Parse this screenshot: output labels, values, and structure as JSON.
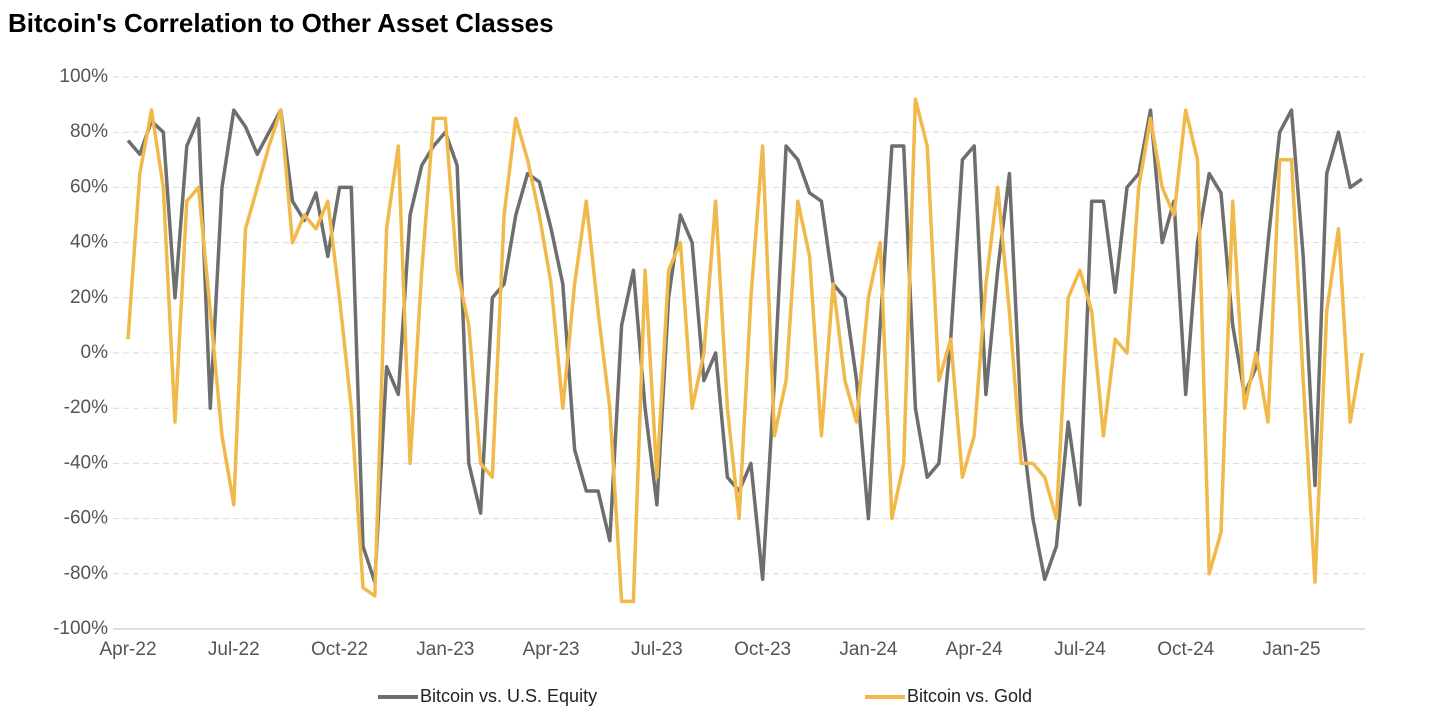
{
  "chart_data": {
    "type": "line",
    "title": "Bitcoin's Correlation to Other Asset Classes",
    "categories": [
      "Apr-22",
      null,
      null,
      null,
      null,
      null,
      null,
      null,
      null,
      "Jul-22",
      null,
      null,
      null,
      null,
      null,
      null,
      null,
      null,
      "Oct-22",
      null,
      null,
      null,
      null,
      null,
      null,
      null,
      null,
      "Jan-23",
      null,
      null,
      null,
      null,
      null,
      null,
      null,
      null,
      "Apr-23",
      null,
      null,
      null,
      null,
      null,
      null,
      null,
      null,
      "Jul-23",
      null,
      null,
      null,
      null,
      null,
      null,
      null,
      null,
      "Oct-23",
      null,
      null,
      null,
      null,
      null,
      null,
      null,
      null,
      "Jan-24",
      null,
      null,
      null,
      null,
      null,
      null,
      null,
      null,
      "Apr-24",
      null,
      null,
      null,
      null,
      null,
      null,
      null,
      null,
      "Jul-24",
      null,
      null,
      null,
      null,
      null,
      null,
      null,
      null,
      "Oct-24",
      null,
      null,
      null,
      null,
      null,
      null,
      null,
      null,
      "Jan-25",
      null,
      null,
      null,
      null,
      null,
      null
    ],
    "series": [
      {
        "name": "Bitcoin vs. U.S. Equity",
        "color": "#6e6e6e",
        "values": [
          77,
          72,
          84,
          80,
          20,
          75,
          85,
          -20,
          60,
          88,
          82,
          72,
          80,
          88,
          55,
          48,
          58,
          35,
          60,
          60,
          -70,
          -83,
          -5,
          -15,
          50,
          68,
          75,
          80,
          68,
          -40,
          -58,
          20,
          25,
          50,
          65,
          62,
          45,
          25,
          -35,
          -50,
          -50,
          -68,
          10,
          30,
          -20,
          -55,
          20,
          50,
          40,
          -10,
          0,
          -45,
          -50,
          -40,
          -82,
          -10,
          75,
          70,
          58,
          55,
          25,
          20,
          -10,
          -60,
          10,
          75,
          75,
          -20,
          -45,
          -40,
          5,
          70,
          75,
          -15,
          30,
          65,
          -25,
          -60,
          -82,
          -70,
          -25,
          -55,
          55,
          55,
          22,
          60,
          65,
          88,
          40,
          55,
          -15,
          40,
          65,
          58,
          10,
          -15,
          -5,
          40,
          80,
          88,
          35,
          -48,
          65,
          80,
          60,
          63
        ]
      },
      {
        "name": "Bitcoin vs. Gold",
        "color": "#f0b94a",
        "values": [
          5,
          65,
          88,
          60,
          -25,
          55,
          60,
          15,
          -30,
          -55,
          45,
          60,
          75,
          88,
          40,
          50,
          45,
          55,
          20,
          -20,
          -85,
          -88,
          45,
          75,
          -40,
          30,
          85,
          85,
          30,
          10,
          -40,
          -45,
          50,
          85,
          70,
          50,
          25,
          -20,
          25,
          55,
          15,
          -20,
          -90,
          -90,
          30,
          -45,
          30,
          40,
          -20,
          0,
          55,
          -20,
          -60,
          20,
          75,
          -30,
          -10,
          55,
          35,
          -30,
          25,
          -10,
          -25,
          20,
          40,
          -60,
          -40,
          92,
          75,
          -10,
          5,
          -45,
          -30,
          25,
          60,
          15,
          -40,
          -40,
          -45,
          -60,
          20,
          30,
          15,
          -30,
          5,
          0,
          60,
          85,
          60,
          50,
          88,
          70,
          -80,
          -65,
          55,
          -20,
          0,
          -25,
          70,
          70,
          -10,
          -83,
          15,
          45,
          -25,
          0
        ]
      }
    ],
    "ylim": [
      -100,
      100
    ],
    "yticks": [
      {
        "value": -100,
        "label": "-100%"
      },
      {
        "value": -80,
        "label": "-80%"
      },
      {
        "value": -60,
        "label": "-60%"
      },
      {
        "value": -40,
        "label": "-40%"
      },
      {
        "value": -20,
        "label": "-20%"
      },
      {
        "value": 0,
        "label": "0%"
      },
      {
        "value": 20,
        "label": "20%"
      },
      {
        "value": 40,
        "label": "40%"
      },
      {
        "value": 60,
        "label": "60%"
      },
      {
        "value": 80,
        "label": "80%"
      },
      {
        "value": 100,
        "label": "100%"
      }
    ],
    "grid": true,
    "legend": "bottom"
  }
}
